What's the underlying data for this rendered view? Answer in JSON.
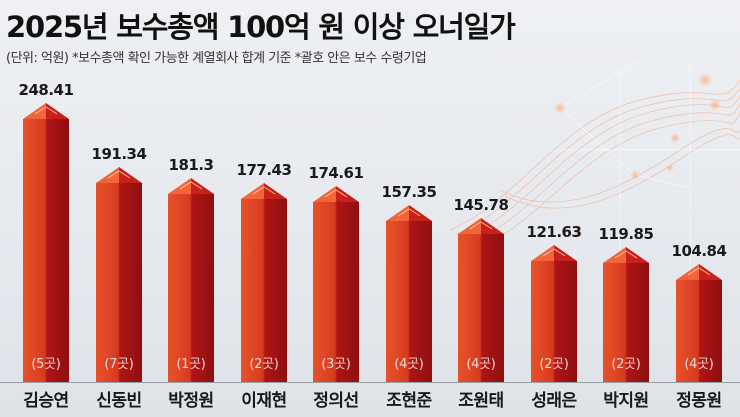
{
  "header": {
    "title": "2025년 보수총액 100억 원 이상 오너일가",
    "subtitle": "(단위: 억원) *보수총액 확인 가능한 계열회사 합계 기준 *괄호 안은 보수 수령기업"
  },
  "colors": {
    "bar_light": "#e8532a",
    "bar_dark": "#8e0f10",
    "text": "#1a1a1a",
    "background": "#e8ebef"
  },
  "chart_data": {
    "type": "bar",
    "title": "2025년 보수총액 100억 원 이상 오너일가",
    "subtitle": "(단위: 억원) *보수총액 확인 가능한 계열회사 합계 기준 *괄호 안은 보수 수령기업",
    "xlabel": "",
    "ylabel": "억원",
    "categories": [
      "김승연",
      "신동빈",
      "박정원",
      "이재현",
      "정의선",
      "조현준",
      "조원태",
      "성래은",
      "박지원",
      "정몽원"
    ],
    "values": [
      248.41,
      191.34,
      181.3,
      177.43,
      174.61,
      157.35,
      145.78,
      121.63,
      119.85,
      104.84
    ],
    "value_labels": [
      "248.41",
      "191.34",
      "181.3",
      "177.43",
      "174.61",
      "157.35",
      "145.78",
      "121.63",
      "119.85",
      "104.84"
    ],
    "company_counts": [
      "(5곳)",
      "(7곳)",
      "(1곳)",
      "(2곳)",
      "(3곳)",
      "(4곳)",
      "(4곳)",
      "(2곳)",
      "(2곳)",
      "(4곳)"
    ],
    "grid": false,
    "legend": "none",
    "ylim": [
      0,
      260
    ]
  }
}
